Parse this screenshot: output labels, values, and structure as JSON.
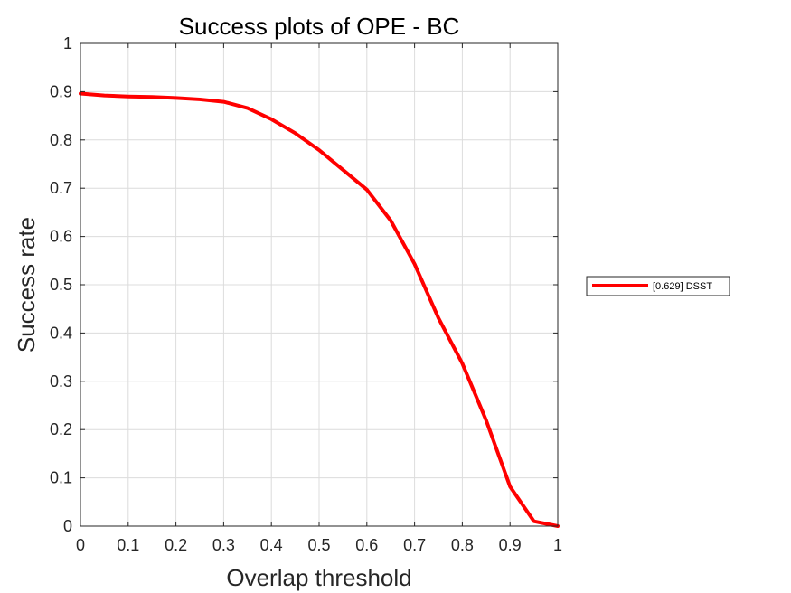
{
  "chart_data": {
    "type": "line",
    "title": "Success plots of OPE - BC",
    "xlabel": "Overlap threshold",
    "ylabel": "Success rate",
    "xlim": [
      0,
      1
    ],
    "ylim": [
      0,
      1
    ],
    "grid": true,
    "legend_position": "outside-right",
    "xticks": [
      "0",
      "0.1",
      "0.2",
      "0.3",
      "0.4",
      "0.5",
      "0.6",
      "0.7",
      "0.8",
      "0.9",
      "1"
    ],
    "yticks": [
      "0",
      "0.1",
      "0.2",
      "0.3",
      "0.4",
      "0.5",
      "0.6",
      "0.7",
      "0.8",
      "0.9",
      "1"
    ],
    "x": [
      0,
      0.05,
      0.1,
      0.15,
      0.2,
      0.25,
      0.3,
      0.35,
      0.4,
      0.45,
      0.5,
      0.55,
      0.6,
      0.65,
      0.7,
      0.75,
      0.8,
      0.85,
      0.9,
      0.95,
      1
    ],
    "series": [
      {
        "name": "[0.629] DSST",
        "color": "#ff0000",
        "values": [
          0.896,
          0.892,
          0.89,
          0.889,
          0.887,
          0.884,
          0.879,
          0.866,
          0.843,
          0.814,
          0.779,
          0.738,
          0.697,
          0.633,
          0.543,
          0.431,
          0.337,
          0.219,
          0.082,
          0.01,
          0.0
        ]
      }
    ]
  }
}
